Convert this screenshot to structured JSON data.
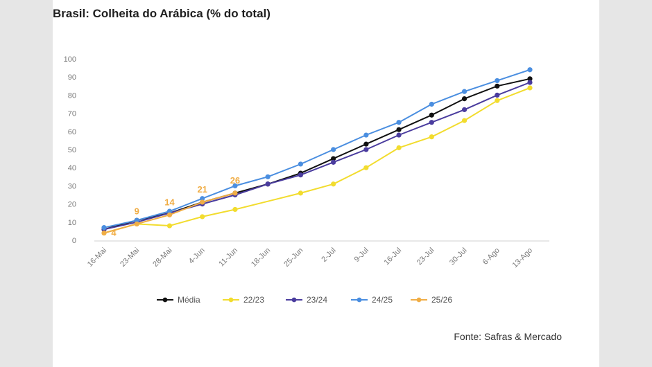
{
  "title": "Brasil: Colheita do Arábica (% do total)",
  "source": "Fonte: Safras & Mercado",
  "chart_data": {
    "type": "line",
    "title": "Brasil: Colheita do Arábica (% do total)",
    "categories": [
      "16-Mai",
      "23-Mai",
      "28-Mai",
      "4-Jun",
      "11-Jun",
      "18-Jun",
      "25-Jun",
      "2-Jul",
      "9-Jul",
      "16-Jul",
      "23-Jul",
      "30-Jul",
      "6-Ago",
      "13-Ago"
    ],
    "ylim": [
      0,
      100
    ],
    "yticks": [
      0,
      10,
      20,
      30,
      40,
      50,
      60,
      70,
      80,
      90,
      100
    ],
    "grid": false,
    "legend": "bottom",
    "series": [
      {
        "name": "Média",
        "color": "#111111",
        "values": [
          6,
          11,
          15,
          21,
          26,
          31,
          37,
          45,
          53,
          61,
          69,
          78,
          85,
          89
        ]
      },
      {
        "name": "22/23",
        "color": "#f2dc2e",
        "values": [
          4,
          9,
          8,
          13,
          17,
          null,
          26,
          31,
          40,
          51,
          57,
          66,
          77,
          84
        ]
      },
      {
        "name": "23/24",
        "color": "#4a3c9e",
        "values": [
          6,
          10,
          15,
          20,
          25,
          31,
          36,
          43,
          50,
          58,
          65,
          72,
          80,
          87
        ]
      },
      {
        "name": "24/25",
        "color": "#4a8ee0",
        "values": [
          7,
          11,
          16,
          23,
          30,
          35,
          42,
          50,
          58,
          65,
          75,
          82,
          88,
          94
        ]
      },
      {
        "name": "25/26",
        "color": "#f0ad45",
        "values": [
          4,
          9,
          14,
          21,
          26,
          null,
          null,
          null,
          null,
          null,
          null,
          null,
          null,
          null
        ]
      }
    ],
    "data_labels": [
      {
        "series": "25/26",
        "index": 0,
        "text": "4"
      },
      {
        "series": "25/26",
        "index": 1,
        "text": "9"
      },
      {
        "series": "25/26",
        "index": 2,
        "text": "14"
      },
      {
        "series": "25/26",
        "index": 3,
        "text": "21"
      },
      {
        "series": "25/26",
        "index": 4,
        "text": "26"
      }
    ]
  }
}
